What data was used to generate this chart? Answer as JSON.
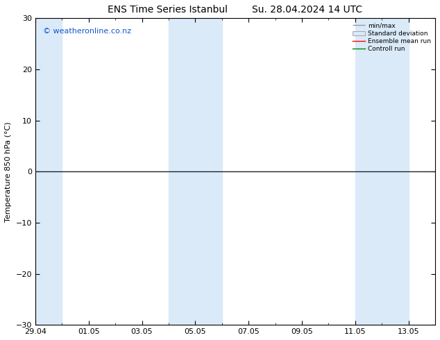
{
  "title_left": "ENS Time Series Istanbul",
  "title_right": "Su. 28.04.2024 14 UTC",
  "ylabel": "Temperature 850 hPa (°C)",
  "ylim": [
    -30,
    30
  ],
  "yticks": [
    -30,
    -20,
    -10,
    0,
    10,
    20,
    30
  ],
  "xtick_labels": [
    "29.04",
    "01.05",
    "03.05",
    "05.05",
    "07.05",
    "09.05",
    "11.05",
    "13.05"
  ],
  "watermark": "© weatheronline.co.nz",
  "legend_items": [
    "min/max",
    "Standard deviation",
    "Ensemble mean run",
    "Controll run"
  ],
  "legend_colors": [
    "#999999",
    "#bbccdd",
    "#ff0000",
    "#008800"
  ],
  "shade_bands": [
    {
      "start": 0,
      "end": 1
    },
    {
      "start": 5,
      "end": 6
    },
    {
      "start": 6,
      "end": 7
    },
    {
      "start": 12,
      "end": 13
    },
    {
      "start": 13,
      "end": 14
    }
  ],
  "shade_color": "#daeaf8",
  "zero_line_color": "#222222",
  "background_color": "#ffffff",
  "title_fontsize": 10,
  "axis_fontsize": 8,
  "watermark_fontsize": 8,
  "watermark_color": "#1155cc"
}
